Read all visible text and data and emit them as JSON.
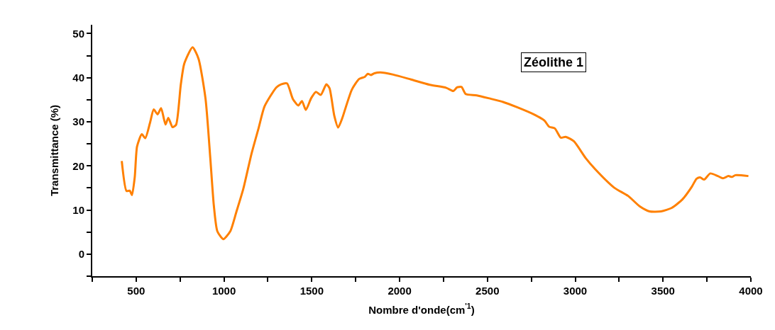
{
  "chart_data": {
    "type": "line",
    "xlabel": "Nombre d'onde(cm$^{'1}$)",
    "ylabel": "Transmittance (%)",
    "annotations": [
      "Zéolithe 1"
    ],
    "xlim": [
      250,
      4000
    ],
    "ylim": [
      -5,
      52
    ],
    "xticks": [
      {
        "value": 250,
        "label": null
      },
      500,
      {
        "value": 750,
        "label": null
      },
      1000,
      {
        "value": 1250,
        "label": null
      },
      1500,
      {
        "value": 1750,
        "label": null
      },
      2000,
      {
        "value": 2250,
        "label": null
      },
      2500,
      {
        "value": 2750,
        "label": null
      },
      3000,
      {
        "value": 3250,
        "label": null
      },
      3500,
      {
        "value": 3750,
        "label": null
      },
      4000
    ],
    "yticks": [
      {
        "value": -5,
        "label": null
      },
      0,
      {
        "value": 5,
        "label": null
      },
      10,
      {
        "value": 15,
        "label": null
      },
      20,
      {
        "value": 25,
        "label": null
      },
      30,
      {
        "value": 35,
        "label": null
      },
      40,
      {
        "value": 45,
        "label": null
      },
      50
    ],
    "marker": "none",
    "line_style": "solid",
    "series": [
      {
        "color": "#ff8000",
        "x": [
          418,
          445,
          463,
          476,
          492,
          505,
          532,
          552,
          579,
          600,
          622,
          642,
          667,
          683,
          707,
          727,
          754,
          774,
          821,
          855,
          895,
          922,
          942,
          962,
          996,
          1036,
          1070,
          1110,
          1157,
          1198,
          1231,
          1298,
          1325,
          1359,
          1392,
          1423,
          1444,
          1466,
          1497,
          1524,
          1551,
          1583,
          1601,
          1628,
          1650,
          1675,
          1695,
          1728,
          1769,
          1802,
          1819,
          1836,
          1856,
          1890,
          1964,
          2065,
          2172,
          2266,
          2306,
          2327,
          2353,
          2376,
          2440,
          2521,
          2589,
          2669,
          2763,
          2824,
          2851,
          2884,
          2918,
          2945,
          2992,
          3059,
          3113,
          3221,
          3301,
          3368,
          3422,
          3489,
          3550,
          3610,
          3664,
          3691,
          3711,
          3734,
          3769,
          3812,
          3841,
          3872,
          3892,
          3912,
          3986
        ],
        "values": [
          21.1,
          14.3,
          14.4,
          13.4,
          17.5,
          24.4,
          27.2,
          26.3,
          29.8,
          32.8,
          31.7,
          33.1,
          29.4,
          30.9,
          28.8,
          29.3,
          38.4,
          43.2,
          46.9,
          44.3,
          35.2,
          21.8,
          11.1,
          5.2,
          3.4,
          5.2,
          9.5,
          14.8,
          22.8,
          28.7,
          33.5,
          37.8,
          38.5,
          38.7,
          35.2,
          33.7,
          34.7,
          32.7,
          35.4,
          36.8,
          36.1,
          38.5,
          37.6,
          31.4,
          28.7,
          31.0,
          33.5,
          37.3,
          39.7,
          40.2,
          40.9,
          40.6,
          41.0,
          41.2,
          40.7,
          39.6,
          38.4,
          37.7,
          37.0,
          37.8,
          37.9,
          36.3,
          36.0,
          35.2,
          34.5,
          33.3,
          31.7,
          30.3,
          28.9,
          28.5,
          26.4,
          26.6,
          25.6,
          21.8,
          19.3,
          15.1,
          13.2,
          10.8,
          9.7,
          9.7,
          10.5,
          12.4,
          15.3,
          17.1,
          17.4,
          16.9,
          18.3,
          17.7,
          17.2,
          17.7,
          17.5,
          17.9,
          17.7
        ]
      }
    ]
  }
}
